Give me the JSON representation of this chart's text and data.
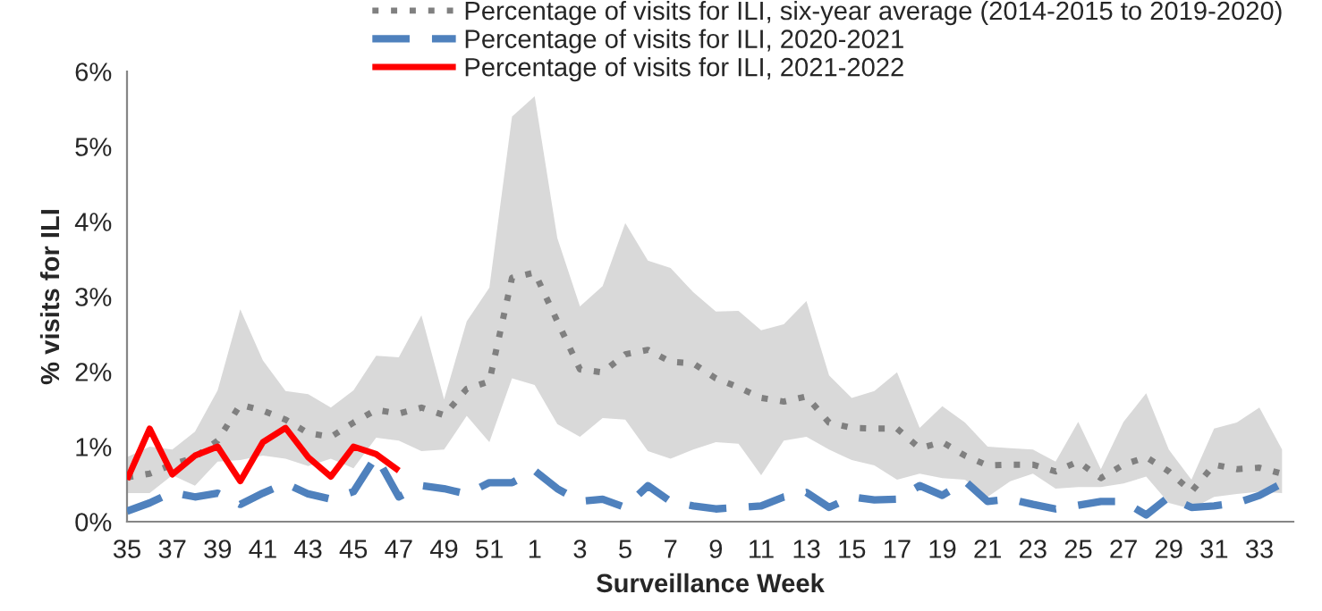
{
  "chart_data": {
    "type": "line",
    "xlabel": "Surveillance Week",
    "ylabel": "% visits for ILI",
    "categories": [
      "35",
      null,
      "37",
      null,
      "39",
      null,
      "41",
      null,
      "43",
      null,
      "45",
      null,
      "47",
      null,
      "49",
      null,
      "51",
      null,
      "1",
      null,
      "3",
      null,
      "5",
      null,
      "7",
      null,
      "9",
      null,
      "11",
      null,
      "13",
      null,
      "15",
      null,
      "17",
      null,
      "19",
      null,
      "21",
      null,
      "23",
      null,
      "25",
      null,
      "27",
      null,
      "29",
      null,
      "31",
      null,
      "33",
      null
    ],
    "ylim": [
      0,
      6
    ],
    "yticks": [
      {
        "value": 0,
        "label": "0%"
      },
      {
        "value": 1,
        "label": "1%"
      },
      {
        "value": 2,
        "label": "2%"
      },
      {
        "value": 3,
        "label": "3%"
      },
      {
        "value": 4,
        "label": "4%"
      },
      {
        "value": 5,
        "label": "5%"
      },
      {
        "value": 6,
        "label": "6%"
      }
    ],
    "grid": false,
    "legend": "top right",
    "marker": "none",
    "series": [
      {
        "name": "Percentage of visits for ILI, six-year average (2014-2015 to 2019-2020)",
        "color": "#808080",
        "line_style": "dotted",
        "values": [
          0.59,
          0.64,
          0.76,
          0.86,
          1.08,
          1.56,
          1.48,
          1.36,
          1.18,
          1.13,
          1.32,
          1.49,
          1.44,
          1.52,
          1.42,
          1.77,
          1.87,
          3.25,
          3.32,
          2.67,
          2.03,
          1.99,
          2.23,
          2.29,
          2.13,
          2.11,
          1.91,
          1.79,
          1.65,
          1.6,
          1.67,
          1.32,
          1.25,
          1.24,
          1.24,
          0.98,
          1.06,
          0.88,
          0.75,
          0.76,
          0.76,
          0.67,
          0.8,
          0.58,
          0.76,
          0.86,
          0.67,
          0.4,
          0.76,
          0.7,
          0.72,
          0.64
        ],
        "lower": [
          0.38,
          0.38,
          0.62,
          0.48,
          0.8,
          0.82,
          0.88,
          0.84,
          0.74,
          0.84,
          0.71,
          1.12,
          1.08,
          0.94,
          0.96,
          1.41,
          1.06,
          1.91,
          1.82,
          1.3,
          1.13,
          1.38,
          1.36,
          0.94,
          0.84,
          0.96,
          1.06,
          1.04,
          0.62,
          1.08,
          1.13,
          0.96,
          0.82,
          0.75,
          0.56,
          0.64,
          0.58,
          0.56,
          0.33,
          0.54,
          0.64,
          0.44,
          0.46,
          0.46,
          0.51,
          0.6,
          0.25,
          0.17,
          0.33,
          0.37,
          0.4,
          0.38
        ],
        "upper": [
          0.86,
          1.0,
          0.96,
          1.2,
          1.75,
          2.83,
          2.15,
          1.74,
          1.7,
          1.52,
          1.75,
          2.21,
          2.19,
          2.75,
          1.63,
          2.67,
          3.12,
          5.4,
          5.67,
          3.78,
          2.87,
          3.14,
          3.98,
          3.48,
          3.38,
          3.06,
          2.8,
          2.81,
          2.55,
          2.63,
          2.94,
          1.95,
          1.65,
          1.74,
          1.99,
          1.25,
          1.54,
          1.32,
          1.0,
          0.98,
          0.96,
          0.8,
          1.33,
          0.7,
          1.33,
          1.71,
          0.96,
          0.56,
          1.24,
          1.32,
          1.52,
          0.96
        ]
      },
      {
        "name": "Percentage of visits for ILI, 2020-2021",
        "color": "#4f81bd",
        "line_style": "dashed",
        "values": [
          0.14,
          0.25,
          0.39,
          0.33,
          0.38,
          0.23,
          0.38,
          0.51,
          0.37,
          0.3,
          0.4,
          0.87,
          0.33,
          0.48,
          0.44,
          0.37,
          0.52,
          0.52,
          0.68,
          0.44,
          0.27,
          0.3,
          0.19,
          0.48,
          0.27,
          0.21,
          0.17,
          0.19,
          0.21,
          0.33,
          0.39,
          0.19,
          0.33,
          0.29,
          0.3,
          0.48,
          0.35,
          0.54,
          0.27,
          0.3,
          0.23,
          0.17,
          0.22,
          0.27,
          0.27,
          0.09,
          0.33,
          0.19,
          0.21,
          0.25,
          0.35,
          0.51
        ]
      },
      {
        "name": "Percentage of visits for ILI, 2021-2022",
        "color": "#ff0000",
        "line_style": "solid",
        "values": [
          0.56,
          1.24,
          0.63,
          0.88,
          1.0,
          0.54,
          1.06,
          1.25,
          0.86,
          0.6,
          1.0,
          0.9,
          0.68,
          null,
          null,
          null,
          null,
          null,
          null,
          null,
          null,
          null,
          null,
          null,
          null,
          null,
          null,
          null,
          null,
          null,
          null,
          null,
          null,
          null,
          null,
          null,
          null,
          null,
          null,
          null,
          null,
          null,
          null,
          null,
          null,
          null,
          null,
          null,
          null,
          null,
          null,
          null
        ]
      }
    ]
  }
}
